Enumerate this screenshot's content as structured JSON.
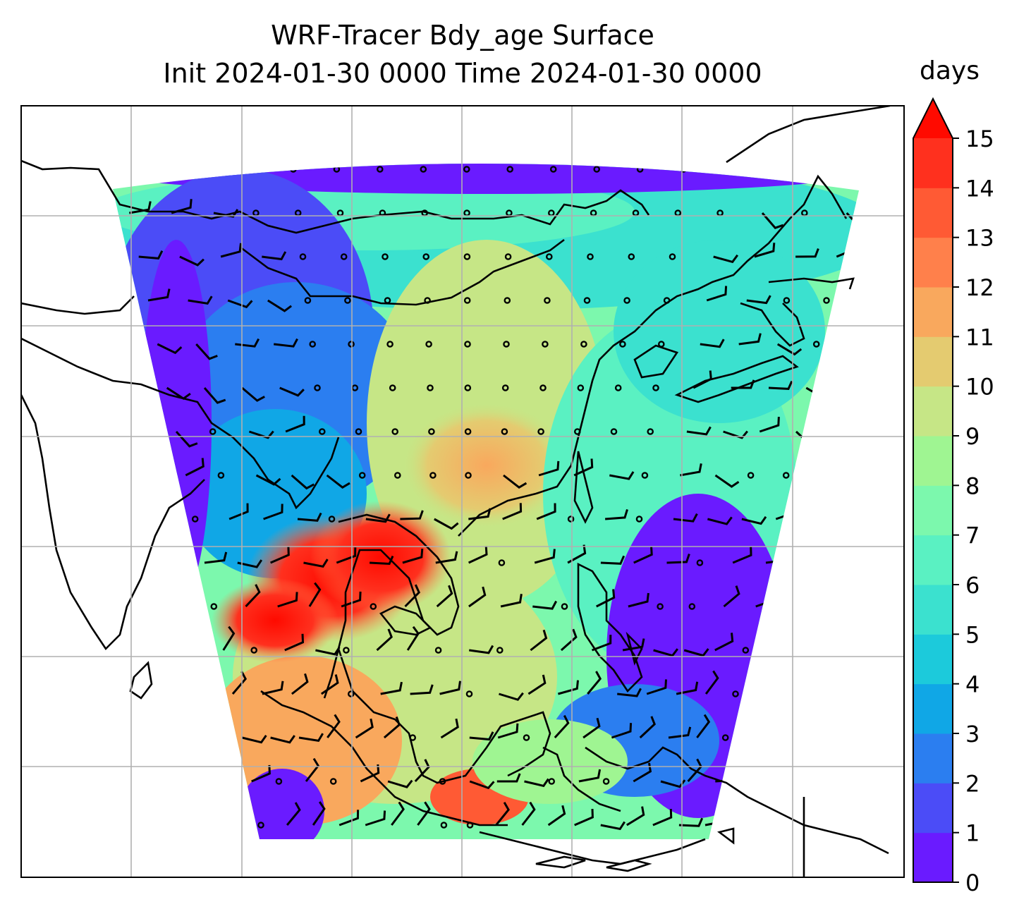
{
  "chart_data": {
    "type": "heatmap",
    "title": "WRF-Tracer Bdy_age Surface",
    "subtitle": "Init 2024-01-30 0000 Time 2024-01-30 0000",
    "colorbar": {
      "label": "days",
      "ticks": [
        "0",
        "1",
        "2",
        "3",
        "4",
        "5",
        "6",
        "7",
        "8",
        "9",
        "10",
        "11",
        "12",
        "13",
        "14",
        "15"
      ],
      "levels": [
        0,
        1,
        2,
        3,
        4,
        5,
        6,
        7,
        8,
        9,
        10,
        11,
        12,
        13,
        14,
        15
      ],
      "colors": [
        "#6a1bff",
        "#4b4cf7",
        "#2b7ef0",
        "#10a7e6",
        "#1ccadb",
        "#3be1cf",
        "#5af1c2",
        "#7cf8ad",
        "#9ff592",
        "#c6e686",
        "#e4cb70",
        "#f9a85d",
        "#ff804b",
        "#ff5a34",
        "#ff301e"
      ],
      "extend": "max",
      "extend_color": "#ff0a00"
    },
    "grid": true,
    "map": {
      "coastlines": true,
      "wind_barbs": true
    }
  }
}
